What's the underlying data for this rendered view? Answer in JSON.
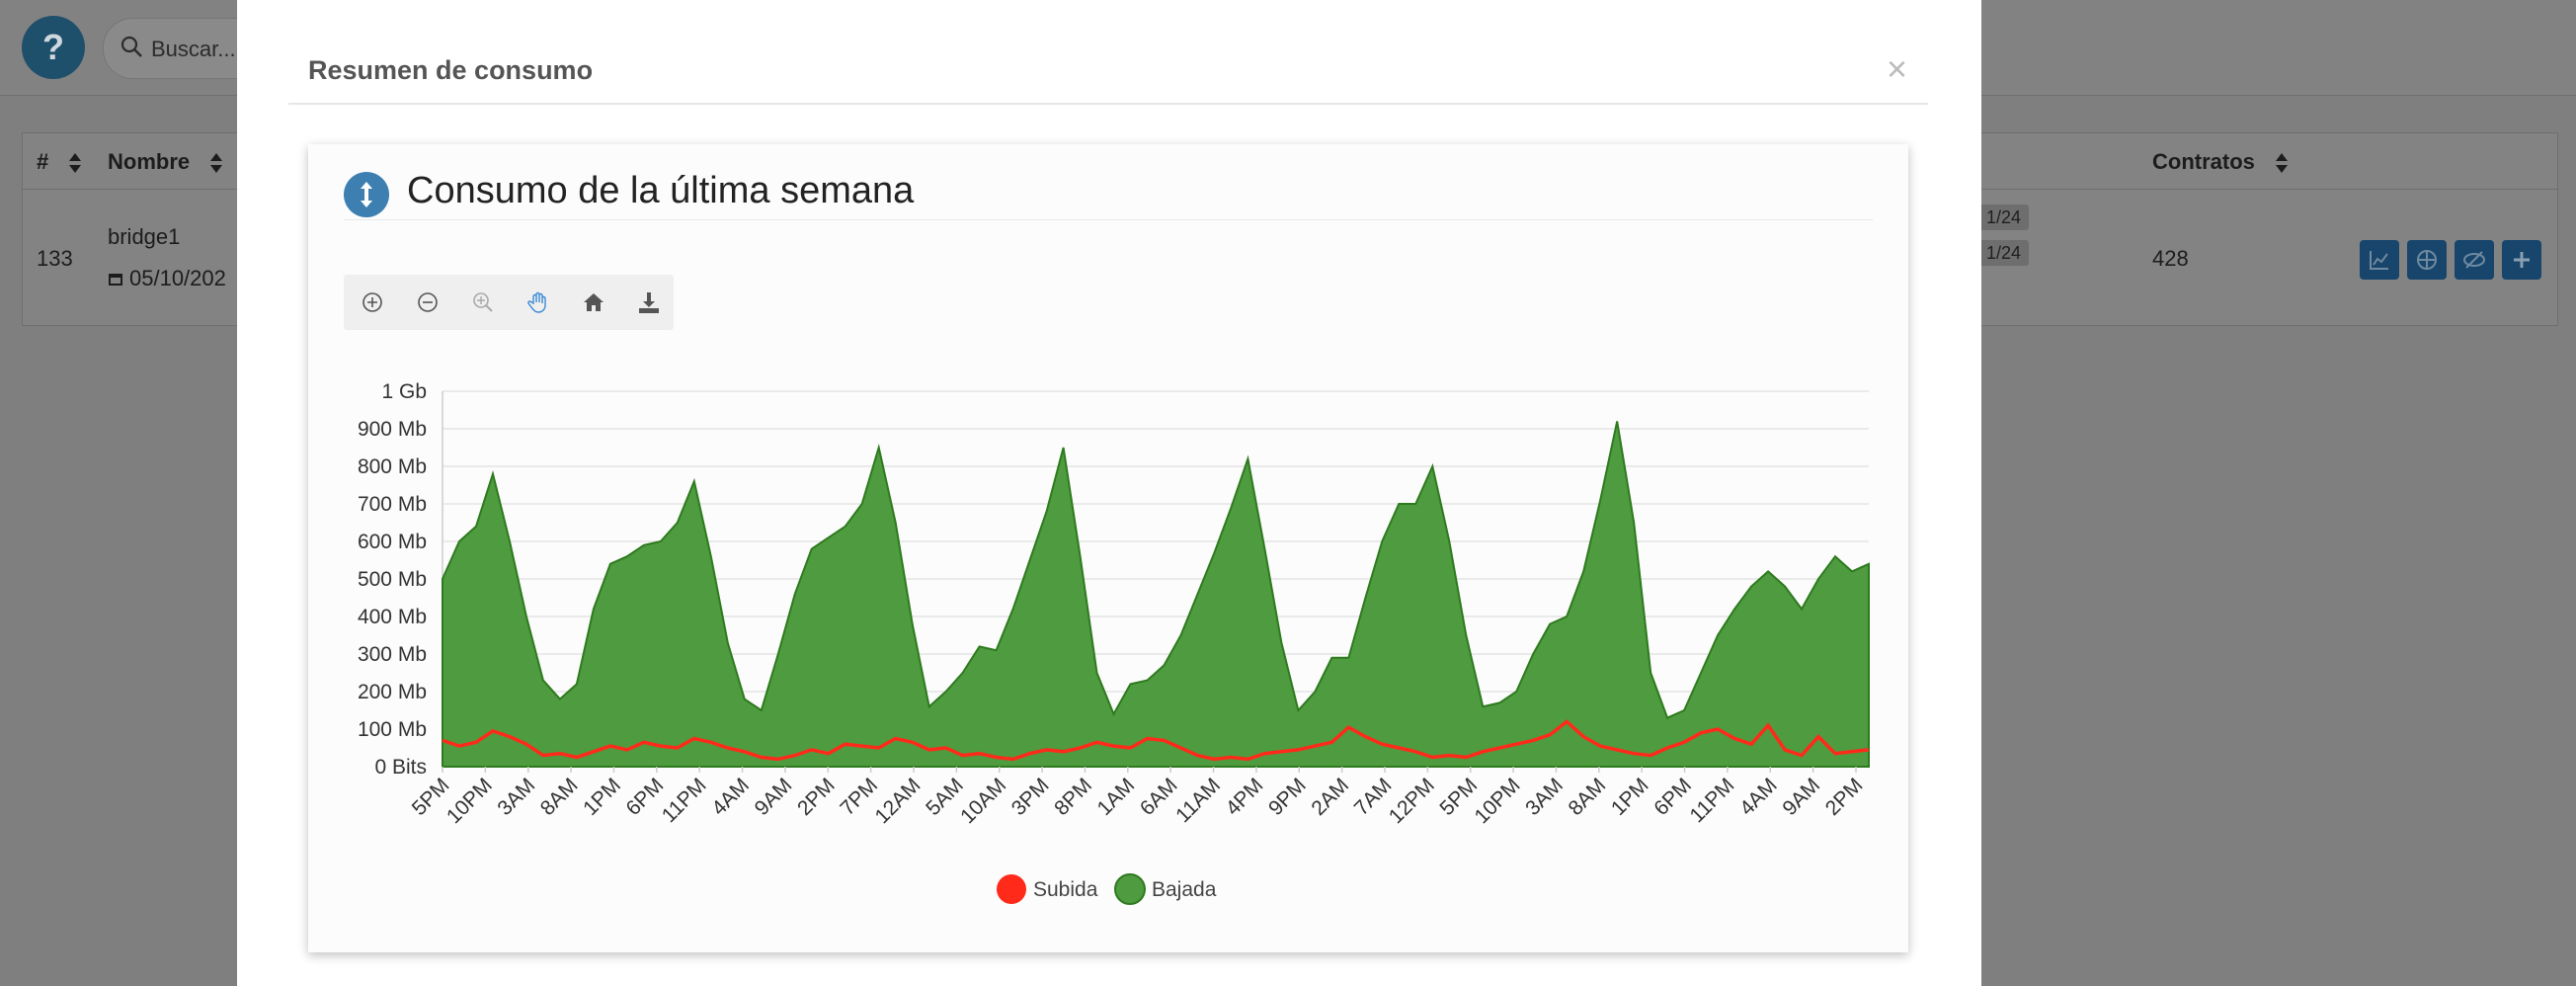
{
  "background": {
    "help_label": "?",
    "search_placeholder": "Buscar...",
    "table": {
      "headers": [
        "#",
        "Nombre",
        "Contratos"
      ],
      "row": {
        "id": "133",
        "name": "bridge1",
        "date": "05/10/202",
        "chips": [
          "1/24",
          "1/24"
        ],
        "contracts": "428"
      },
      "action_icons": [
        "chart-icon",
        "network-icon",
        "eye-slash-icon",
        "plus-icon"
      ]
    }
  },
  "modal": {
    "title": "Resumen de consumo",
    "close_label": "×",
    "panel_title": "Consumo de la última semana",
    "toolbar_icons": [
      "zoom-in-icon",
      "zoom-out-icon",
      "zoom-select-icon",
      "pan-hand-icon",
      "home-icon",
      "download-icon"
    ]
  },
  "colors": {
    "subida": "#ff2a1a",
    "bajada": "#4f9b40",
    "bajada_line": "#2e7a1e",
    "accent": "#3d7fb0"
  },
  "chart_data": {
    "type": "area",
    "title": "",
    "xlabel": "",
    "ylabel": "",
    "y_unit_labels": [
      "0 Bits",
      "100 Mb",
      "200 Mb",
      "300 Mb",
      "400 Mb",
      "500 Mb",
      "600 Mb",
      "700 Mb",
      "800 Mb",
      "900 Mb",
      "1 Gb"
    ],
    "ylim": [
      0,
      1000
    ],
    "x_tick_labels": [
      "5PM",
      "10PM",
      "3AM",
      "8AM",
      "1PM",
      "6PM",
      "11PM",
      "4AM",
      "9AM",
      "2PM",
      "7PM",
      "12AM",
      "5AM",
      "10AM",
      "3PM",
      "8PM",
      "1AM",
      "6AM",
      "11AM",
      "4PM",
      "9PM",
      "2AM",
      "7AM",
      "12PM",
      "5PM",
      "10PM",
      "3AM",
      "8AM",
      "1PM",
      "6PM",
      "11PM",
      "4AM",
      "9AM",
      "2PM"
    ],
    "x_hours_range": [
      0,
      170
    ],
    "grid": true,
    "legend_position": "bottom",
    "series": [
      {
        "name": "Subida",
        "x": [
          0,
          2,
          4,
          6,
          8,
          10,
          12,
          14,
          16,
          18,
          20,
          22,
          24,
          26,
          28,
          30,
          32,
          34,
          36,
          38,
          40,
          42,
          44,
          46,
          48,
          50,
          52,
          54,
          56,
          58,
          60,
          62,
          64,
          66,
          68,
          70,
          72,
          74,
          76,
          78,
          80,
          82,
          84,
          86,
          88,
          90,
          92,
          94,
          96,
          98,
          100,
          102,
          104,
          106,
          108,
          110,
          112,
          114,
          116,
          118,
          120,
          122,
          124,
          126,
          128,
          130,
          132,
          134,
          136,
          138,
          140,
          142,
          144,
          146,
          148,
          150,
          152,
          154,
          156,
          158,
          160,
          162,
          164,
          166,
          168,
          170
        ],
        "values": [
          70,
          55,
          65,
          95,
          80,
          60,
          30,
          35,
          25,
          40,
          55,
          45,
          65,
          55,
          50,
          75,
          65,
          50,
          40,
          25,
          20,
          30,
          45,
          35,
          60,
          55,
          50,
          75,
          65,
          45,
          50,
          30,
          35,
          25,
          20,
          35,
          45,
          40,
          50,
          65,
          55,
          50,
          75,
          70,
          50,
          30,
          20,
          25,
          20,
          35,
          40,
          45,
          55,
          65,
          105,
          80,
          60,
          50,
          40,
          25,
          30,
          25,
          40,
          50,
          60,
          70,
          85,
          120,
          80,
          55,
          45,
          35,
          30,
          50,
          65,
          90,
          100,
          75,
          60,
          110,
          45,
          30,
          80,
          35,
          40,
          45
        ]
      },
      {
        "name": "Bajada",
        "x": [
          0,
          2,
          4,
          6,
          8,
          10,
          12,
          14,
          16,
          18,
          20,
          22,
          24,
          26,
          28,
          30,
          32,
          34,
          36,
          38,
          40,
          42,
          44,
          46,
          48,
          50,
          52,
          54,
          56,
          58,
          60,
          62,
          64,
          66,
          68,
          70,
          72,
          74,
          76,
          78,
          80,
          82,
          84,
          86,
          88,
          90,
          92,
          94,
          96,
          98,
          100,
          102,
          104,
          106,
          108,
          110,
          112,
          114,
          116,
          118,
          120,
          122,
          124,
          126,
          128,
          130,
          132,
          134,
          136,
          138,
          140,
          142,
          144,
          146,
          148,
          150,
          152,
          154,
          156,
          158,
          160,
          162,
          164,
          166,
          168,
          170
        ],
        "values": [
          500,
          600,
          640,
          780,
          600,
          400,
          230,
          180,
          220,
          420,
          540,
          560,
          590,
          600,
          650,
          760,
          560,
          330,
          180,
          150,
          300,
          460,
          580,
          610,
          640,
          700,
          850,
          650,
          380,
          160,
          200,
          250,
          320,
          310,
          420,
          550,
          680,
          850,
          560,
          250,
          140,
          220,
          230,
          270,
          350,
          460,
          570,
          690,
          820,
          580,
          330,
          150,
          200,
          290,
          290,
          450,
          600,
          700,
          700,
          800,
          600,
          350,
          160,
          170,
          200,
          300,
          380,
          400,
          520,
          710,
          920,
          650,
          250,
          130,
          150,
          250,
          350,
          420,
          480,
          520,
          480,
          420,
          500,
          560,
          520,
          540
        ]
      }
    ]
  }
}
